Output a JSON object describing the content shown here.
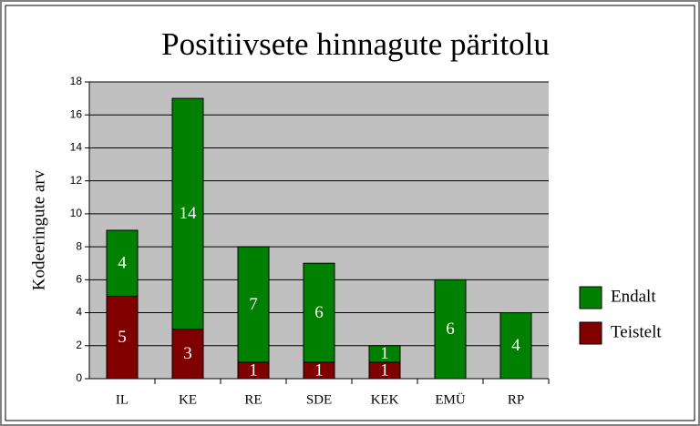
{
  "chart_data": {
    "type": "stacked_bar",
    "title": "Positiivsete hinnagute päritolu",
    "ylabel": "Kodeeringute arv",
    "categories": [
      "IL",
      "KE",
      "RE",
      "SDE",
      "KEK",
      "EMÜ",
      "RP"
    ],
    "series": [
      {
        "name": "Teistelt",
        "color": "#800000",
        "values": [
          5,
          3,
          1,
          1,
          1,
          0,
          0
        ]
      },
      {
        "name": "Endalt",
        "color": "#008000",
        "values": [
          4,
          14,
          7,
          6,
          1,
          6,
          4
        ]
      }
    ],
    "ylim": [
      0,
      18
    ],
    "yticks": [
      0,
      2,
      4,
      6,
      8,
      10,
      12,
      14,
      16,
      18
    ],
    "grid": true,
    "legend": "right"
  }
}
